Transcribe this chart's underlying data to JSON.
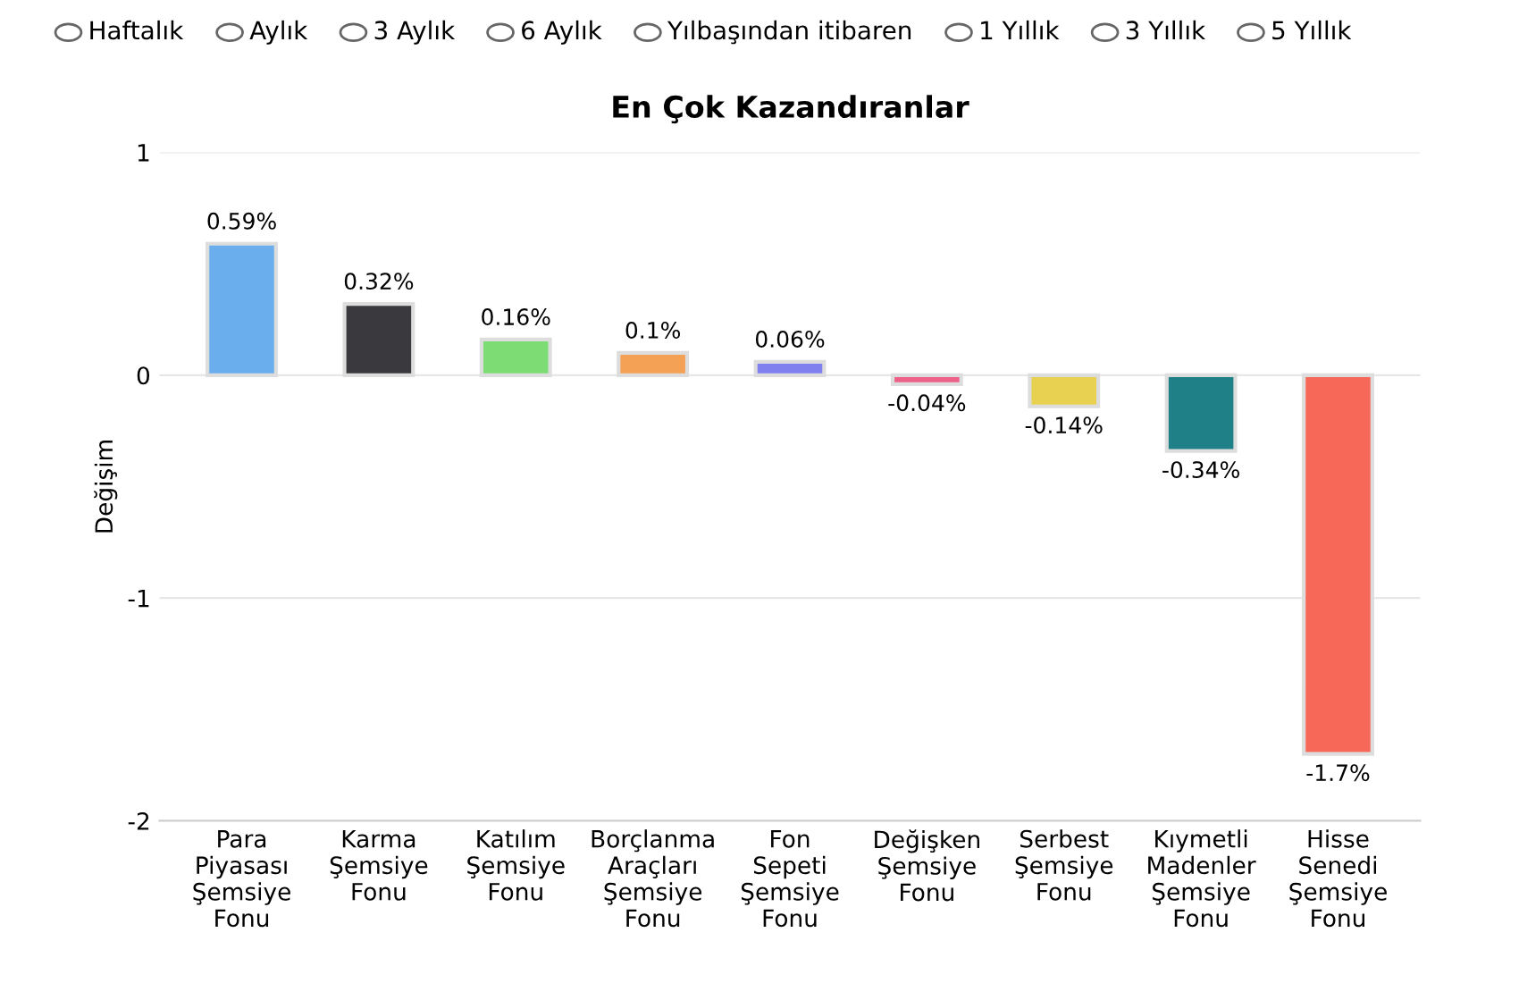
{
  "chart_data": {
    "type": "bar",
    "title": "En Çok Kazandıranlar",
    "ylabel": "Değişim",
    "categories": [
      "Para\nPiyasası\nŞemsiye\nFonu",
      "Karma\nŞemsiye\nFonu",
      "Katılım\nŞemsiye\nFonu",
      "Borçlanma\nAraçları\nŞemsiye\nFonu",
      "Fon\nSepeti\nŞemsiye\nFonu",
      "Değişken\nŞemsiye\nFonu",
      "Serbest\nŞemsiye\nFonu",
      "Kıymetli\nMadenler\nŞemsiye\nFonu",
      "Hisse\nSenedi\nŞemsiye\nFonu"
    ],
    "values": [
      0.59,
      0.32,
      0.16,
      0.1,
      0.06,
      -0.04,
      -0.14,
      -0.34,
      -1.7
    ],
    "value_labels": [
      "0.59%",
      "0.32%",
      "0.16%",
      "0.1%",
      "0.06%",
      "-0.04%",
      "-0.14%",
      "-0.34%",
      "-1.7%"
    ],
    "colors": [
      "#6aaeee",
      "#3a3a3e",
      "#7ddc74",
      "#f4a055",
      "#8080ee",
      "#ee6088",
      "#e8d050",
      "#208088",
      "#f86858"
    ],
    "ylim": [
      -2,
      1
    ],
    "yticks": [
      -2,
      -1,
      0,
      1
    ],
    "grid": "y",
    "legend": false,
    "annotations": [
      "Haftalık",
      "Aylık",
      "3 Aylık",
      "6 Aylık",
      "Yılbaşından itibaren",
      "1 Yıllık",
      "3 Yıllık",
      "5 Yıllık"
    ]
  }
}
